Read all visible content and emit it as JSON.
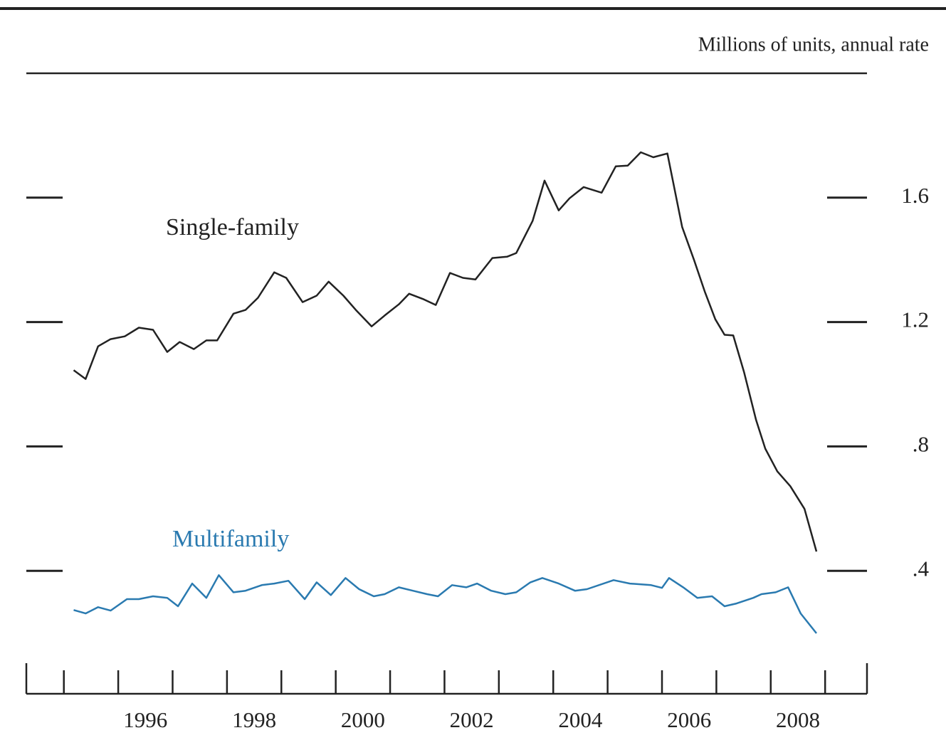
{
  "chart_data": {
    "type": "line",
    "axis_label": "Millions of units, annual rate",
    "xlim": [
      1994.31,
      2009.77
    ],
    "xticks": [
      {
        "value": 1996,
        "label": "1996"
      },
      {
        "value": 1998,
        "label": "1998"
      },
      {
        "value": 2000,
        "label": "2000"
      },
      {
        "value": 2002,
        "label": "2002"
      },
      {
        "value": 2004,
        "label": "2004"
      },
      {
        "value": 2006,
        "label": "2006"
      },
      {
        "value": 2008,
        "label": "2008"
      }
    ],
    "xminor_ticks": [
      1995,
      1997,
      1999,
      2001,
      2003,
      2005,
      2007,
      2009
    ],
    "ylim": [
      0,
      2.0
    ],
    "yticks": [
      {
        "value": 0.4,
        "label": ".4"
      },
      {
        "value": 0.8,
        "label": ".8"
      },
      1.2,
      1.6
    ],
    "series": [
      {
        "name": "Single-family",
        "color": "#222222",
        "x": [
          1995.18,
          1995.4,
          1995.63,
          1995.86,
          1996.12,
          1996.38,
          1996.64,
          1996.9,
          1997.13,
          1997.39,
          1997.62,
          1997.82,
          1998.12,
          1998.34,
          1998.57,
          1998.87,
          1999.09,
          1999.39,
          1999.65,
          1999.87,
          2000.14,
          2000.37,
          2000.66,
          2000.9,
          2001.16,
          2001.35,
          2001.62,
          2001.84,
          2002.1,
          2002.34,
          2002.57,
          2002.88,
          2003.15,
          2003.32,
          2003.62,
          2003.84,
          2004.1,
          2004.3,
          2004.56,
          2004.89,
          2005.15,
          2005.37,
          2005.61,
          2005.84,
          2006.1,
          2006.37,
          2006.59,
          2006.79,
          2006.98,
          2007.15,
          2007.31,
          2007.51,
          2007.73,
          2007.9,
          2008.12,
          2008.36,
          2008.62,
          2008.84
        ],
        "values": [
          1.045,
          1.017,
          1.122,
          1.145,
          1.154,
          1.182,
          1.175,
          1.104,
          1.136,
          1.113,
          1.141,
          1.141,
          1.227,
          1.239,
          1.278,
          1.36,
          1.342,
          1.264,
          1.285,
          1.33,
          1.285,
          1.239,
          1.186,
          1.221,
          1.257,
          1.291,
          1.273,
          1.255,
          1.358,
          1.342,
          1.337,
          1.406,
          1.41,
          1.422,
          1.525,
          1.655,
          1.559,
          1.598,
          1.634,
          1.616,
          1.701,
          1.703,
          1.746,
          1.73,
          1.742,
          1.506,
          1.399,
          1.296,
          1.209,
          1.159,
          1.157,
          1.038,
          0.885,
          0.793,
          0.72,
          0.672,
          0.599,
          0.462
        ]
      },
      {
        "name": "Multifamily",
        "color": "#2a7ab0",
        "x": [
          1995.18,
          1995.4,
          1995.63,
          1995.86,
          1996.16,
          1996.38,
          1996.64,
          1996.9,
          1997.1,
          1997.36,
          1997.62,
          1997.85,
          1998.12,
          1998.34,
          1998.64,
          1998.87,
          1999.13,
          1999.43,
          1999.65,
          1999.91,
          2000.18,
          2000.43,
          2000.7,
          2000.9,
          2001.16,
          2001.42,
          2001.68,
          2001.88,
          2002.14,
          2002.4,
          2002.6,
          2002.86,
          2003.12,
          2003.32,
          2003.58,
          2003.8,
          2004.1,
          2004.4,
          2004.62,
          2005.11,
          2005.41,
          2005.8,
          2006.0,
          2006.13,
          2006.39,
          2006.65,
          2006.92,
          2007.15,
          2007.37,
          2007.68,
          2007.83,
          2008.09,
          2008.32,
          2008.55,
          2008.84
        ],
        "values": [
          0.274,
          0.263,
          0.283,
          0.272,
          0.309,
          0.309,
          0.318,
          0.313,
          0.286,
          0.359,
          0.313,
          0.386,
          0.331,
          0.336,
          0.354,
          0.359,
          0.368,
          0.309,
          0.363,
          0.322,
          0.377,
          0.341,
          0.318,
          0.325,
          0.347,
          0.336,
          0.325,
          0.318,
          0.354,
          0.347,
          0.359,
          0.336,
          0.325,
          0.331,
          0.363,
          0.377,
          0.359,
          0.336,
          0.341,
          0.37,
          0.359,
          0.354,
          0.345,
          0.377,
          0.347,
          0.313,
          0.318,
          0.286,
          0.295,
          0.313,
          0.325,
          0.331,
          0.347,
          0.263,
          0.199
        ]
      }
    ]
  }
}
